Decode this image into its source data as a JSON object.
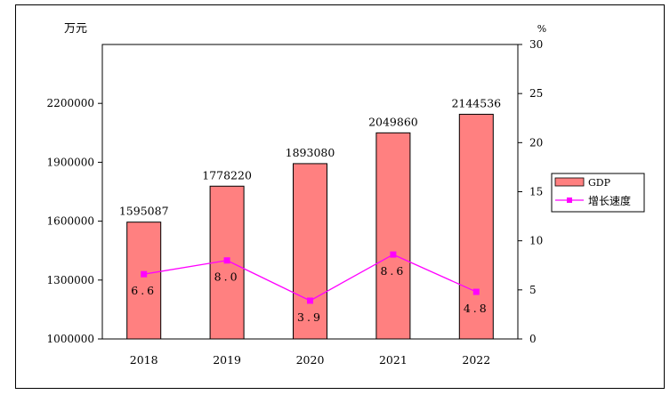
{
  "chart_data": {
    "type": "bar+line",
    "categories": [
      "2018",
      "2019",
      "2020",
      "2021",
      "2022"
    ],
    "series": [
      {
        "name": "GDP",
        "type": "bar",
        "axis": "left",
        "values": [
          1595087,
          1778220,
          1893080,
          2049860,
          2144536
        ],
        "value_labels": [
          "1595087",
          "1778220",
          "1893080",
          "2049860",
          "2144536"
        ],
        "color": "#FF8080"
      },
      {
        "name": "增长速度",
        "type": "line",
        "axis": "right",
        "values": [
          6.6,
          8.0,
          3.9,
          8.6,
          4.8
        ],
        "value_labels": [
          "6.6",
          "8.0",
          "3.9",
          "8.6",
          "4.8"
        ],
        "color": "#FF00FF"
      }
    ],
    "left_axis": {
      "unit": "万元",
      "range": [
        1000000,
        2500000
      ],
      "ticks": [
        1000000,
        1300000,
        1600000,
        1900000,
        2200000
      ],
      "tick_labels": [
        "1000000",
        "1300000",
        "1600000",
        "1900000",
        "2200000"
      ]
    },
    "right_axis": {
      "unit": "%",
      "range": [
        0,
        30
      ],
      "ticks": [
        0,
        5,
        10,
        15,
        20,
        25,
        30
      ],
      "tick_labels": [
        "0",
        "5",
        "10",
        "15",
        "20",
        "25",
        "30"
      ]
    },
    "legend": {
      "position": "right",
      "entries": [
        "GDP",
        "增长速度"
      ]
    },
    "grid": false
  }
}
